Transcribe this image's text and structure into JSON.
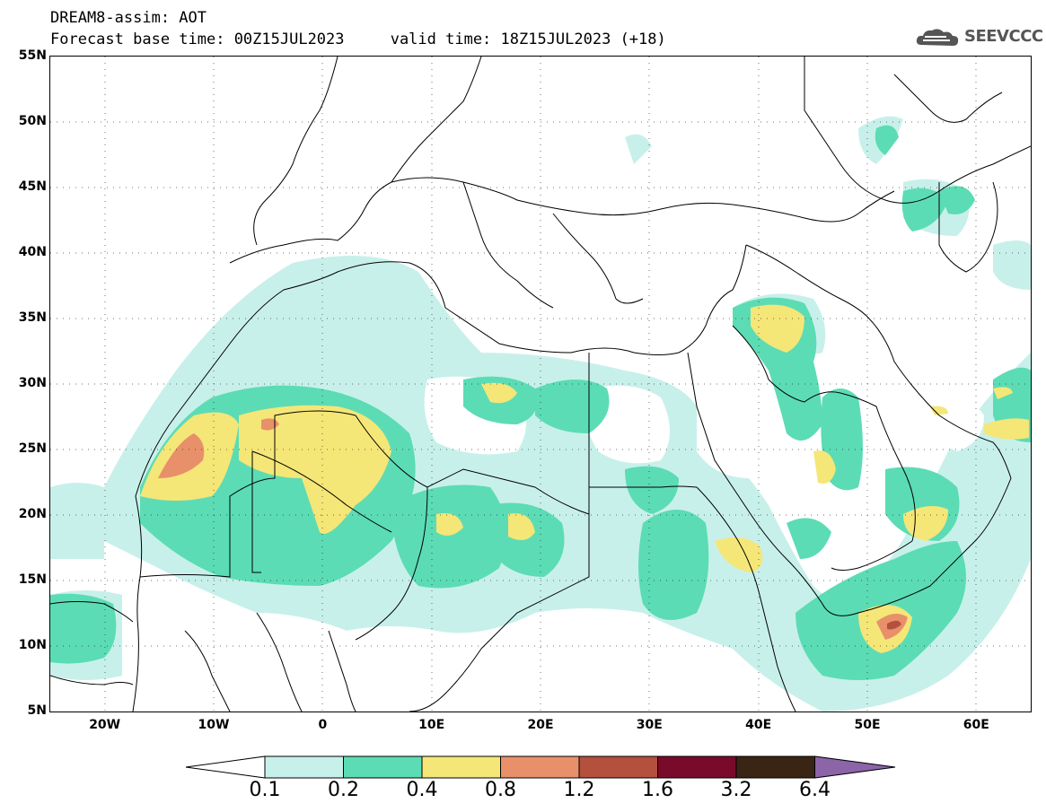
{
  "title": {
    "line1": "DREAM8-assim: AOT",
    "base_time": "Forecast base time: 00Z15JUL2023",
    "valid_time": "valid time: 18Z15JUL2023 (+18)"
  },
  "logo": {
    "text": "SEEVCCC",
    "icon": "cloud-icon"
  },
  "axes": {
    "lat_labels": [
      "55N",
      "50N",
      "45N",
      "40N",
      "35N",
      "30N",
      "25N",
      "20N",
      "15N",
      "10N",
      "5N"
    ],
    "lon_labels": [
      "20W",
      "10W",
      "0",
      "10E",
      "20E",
      "30E",
      "40E",
      "50E",
      "60E"
    ],
    "lat_range": [
      5,
      55
    ],
    "lon_range": [
      -25,
      65
    ],
    "gridlines": "dotted"
  },
  "colorbar": {
    "labels": [
      "0.1",
      "0.2",
      "0.4",
      "0.8",
      "1.2",
      "1.6",
      "3.2",
      "6.4"
    ],
    "colors": [
      "#c8f0eb",
      "#5cdcb4",
      "#f5e678",
      "#e8906a",
      "#b4503e",
      "#7a0a2a",
      "#3a2414"
    ],
    "below_color": "#ffffff",
    "above_color": "#8c64a8"
  },
  "colors": {
    "level1": "#c8f0eb",
    "level2": "#5cdcb4",
    "level3": "#f5e678",
    "level4": "#e8906a",
    "level5": "#b4503e"
  }
}
